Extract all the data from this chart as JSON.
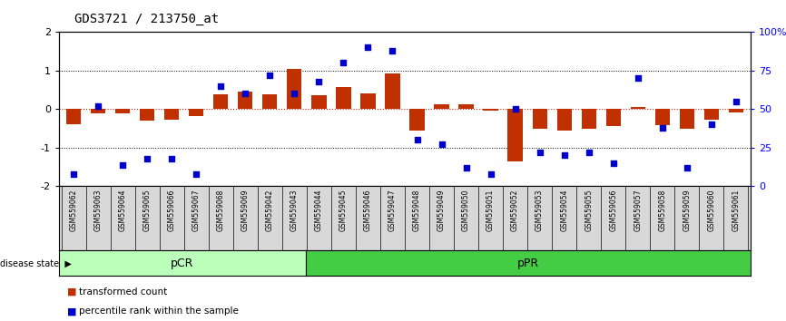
{
  "title": "GDS3721 / 213750_at",
  "samples": [
    "GSM559062",
    "GSM559063",
    "GSM559064",
    "GSM559065",
    "GSM559066",
    "GSM559067",
    "GSM559068",
    "GSM559069",
    "GSM559042",
    "GSM559043",
    "GSM559044",
    "GSM559045",
    "GSM559046",
    "GSM559047",
    "GSM559048",
    "GSM559049",
    "GSM559050",
    "GSM559051",
    "GSM559052",
    "GSM559053",
    "GSM559054",
    "GSM559055",
    "GSM559056",
    "GSM559057",
    "GSM559058",
    "GSM559059",
    "GSM559060",
    "GSM559061"
  ],
  "bar_values": [
    -0.4,
    -0.12,
    -0.1,
    -0.3,
    -0.28,
    -0.18,
    0.38,
    0.45,
    0.38,
    1.05,
    0.35,
    0.58,
    0.42,
    0.92,
    -0.55,
    0.12,
    0.12,
    -0.05,
    -1.35,
    -0.5,
    -0.55,
    -0.5,
    -0.45,
    0.05,
    -0.42,
    -0.52,
    -0.28,
    -0.08
  ],
  "dot_values": [
    8,
    52,
    14,
    18,
    18,
    8,
    65,
    60,
    72,
    60,
    68,
    80,
    90,
    88,
    30,
    27,
    12,
    8,
    50,
    22,
    20,
    22,
    15,
    70,
    38,
    12,
    40,
    55
  ],
  "pCR_count": 10,
  "pPR_count": 18,
  "bar_color": "#c03000",
  "dot_color": "#0000cc",
  "pCR_color": "#bbffbb",
  "pPR_color": "#44cc44",
  "ylim": [
    -2,
    2
  ],
  "y2lim": [
    0,
    100
  ],
  "yticks": [
    -2,
    -1,
    0,
    1,
    2
  ],
  "y2ticks": [
    0,
    25,
    50,
    75,
    100
  ],
  "y2ticklabels": [
    "0",
    "25",
    "50",
    "75",
    "100%"
  ],
  "dotted_lines": [
    -1,
    1
  ],
  "zero_line_color": "#cc2200",
  "legend_bar_label": "transformed count",
  "legend_dot_label": "percentile rank within the sample",
  "disease_state_label": "disease state",
  "pCR_label": "pCR",
  "pPR_label": "pPR"
}
